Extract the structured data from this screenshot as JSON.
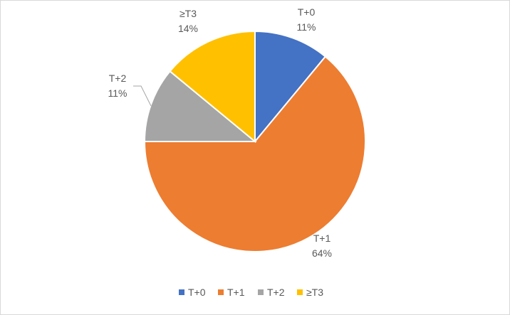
{
  "chart_data": {
    "type": "pie",
    "title": "",
    "categories": [
      "T+0",
      "T+1",
      "T+2",
      "≥T3"
    ],
    "values": [
      11,
      64,
      11,
      14
    ],
    "slice_labels": [
      {
        "name": "T+0",
        "percent": "11%"
      },
      {
        "name": "T+1",
        "percent": "64%"
      },
      {
        "name": "T+2",
        "percent": "11%"
      },
      {
        "name": "≥T3",
        "percent": "14%"
      }
    ],
    "colors": [
      "#4472C4",
      "#ED7D31",
      "#A5A5A5",
      "#FFC000"
    ],
    "legend": {
      "position": "bottom",
      "items": [
        "T+0",
        "T+1",
        "T+2",
        "≥T3"
      ]
    }
  }
}
